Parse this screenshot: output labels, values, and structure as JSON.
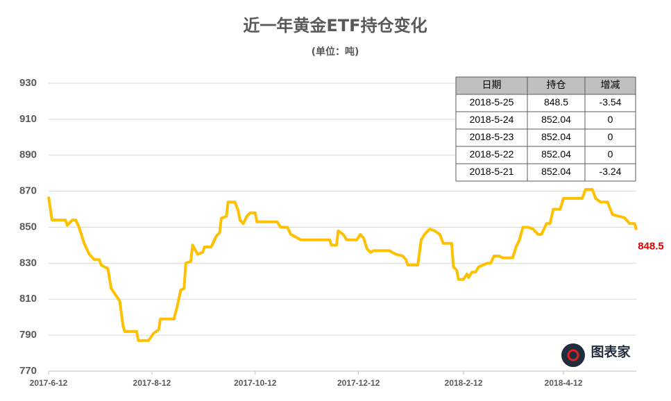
{
  "chart_data": {
    "type": "line",
    "title": "近一年黄金ETF持仓变化",
    "subtitle": "(单位：吨)",
    "x": [
      "2017-6-12",
      "2017-6-14",
      "2017-6-22",
      "2017-6-23",
      "2017-6-26",
      "2017-6-28",
      "2017-6-30",
      "2017-7-3",
      "2017-7-6",
      "2017-7-9",
      "2017-7-12",
      "2017-7-13",
      "2017-7-17",
      "2017-7-19",
      "2017-7-24",
      "2017-7-26",
      "2017-7-27",
      "2017-8-3",
      "2017-8-4",
      "2017-8-10",
      "2017-8-13",
      "2017-8-16",
      "2017-8-17",
      "2017-8-25",
      "2017-8-27",
      "2017-8-29",
      "2017-8-31",
      "2017-9-1",
      "2017-9-4",
      "2017-9-5",
      "2017-9-8",
      "2017-9-11",
      "2017-9-12",
      "2017-9-16",
      "2017-9-19",
      "2017-9-21",
      "2017-9-22",
      "2017-9-25",
      "2017-9-26",
      "2017-9-30",
      "2017-10-2",
      "2017-10-3",
      "2017-10-5",
      "2017-10-7",
      "2017-10-9",
      "2017-10-12",
      "2017-10-13",
      "2017-10-25",
      "2017-10-27",
      "2017-10-31",
      "2017-11-2",
      "2017-11-8",
      "2017-11-25",
      "2017-11-26",
      "2017-11-29",
      "2017-11-30",
      "2017-12-3",
      "2017-12-5",
      "2017-12-11",
      "2017-12-13",
      "2017-12-15",
      "2017-12-17",
      "2017-12-19",
      "2017-12-21",
      "2017-12-30",
      "2018-1-3",
      "2018-1-7",
      "2018-1-9",
      "2018-1-10",
      "2018-1-16",
      "2018-1-18",
      "2018-1-20",
      "2018-1-23",
      "2018-1-26",
      "2018-1-29",
      "2018-1-31",
      "2018-2-5",
      "2018-2-6",
      "2018-2-8",
      "2018-2-9",
      "2018-2-12",
      "2018-2-14",
      "2018-2-15",
      "2018-2-17",
      "2018-2-19",
      "2018-2-21",
      "2018-2-26",
      "2018-2-28",
      "2018-3-2",
      "2018-3-5",
      "2018-3-7",
      "2018-3-13",
      "2018-3-15",
      "2018-3-17",
      "2018-3-19",
      "2018-3-22",
      "2018-3-25",
      "2018-3-28",
      "2018-3-30",
      "2018-4-2",
      "2018-4-4",
      "2018-4-6",
      "2018-4-10",
      "2018-4-12",
      "2018-4-23",
      "2018-4-25",
      "2018-4-29",
      "2018-5-1",
      "2018-5-4",
      "2018-5-8",
      "2018-5-11",
      "2018-5-18",
      "2018-5-21",
      "2018-5-22",
      "2018-5-23",
      "2018-5-24",
      "2018-5-25"
    ],
    "values": [
      867,
      854,
      854,
      851,
      854,
      854,
      850,
      841,
      835,
      832,
      832,
      829,
      827,
      816,
      809,
      795,
      792,
      792,
      787,
      787,
      791,
      793,
      799,
      799,
      806,
      815,
      816,
      830,
      831,
      840,
      835,
      836,
      839,
      839,
      845,
      847,
      855,
      856,
      864,
      864,
      859,
      854,
      852,
      856,
      858,
      858,
      853,
      853,
      850,
      850,
      846,
      843,
      843,
      840,
      840,
      848,
      846,
      843,
      843,
      846,
      844,
      838,
      836,
      837,
      837,
      835,
      834,
      832,
      829,
      829,
      843,
      846,
      849,
      848,
      846,
      841,
      841,
      828,
      826,
      821,
      821,
      824,
      822,
      825,
      825,
      828,
      830,
      830,
      834,
      834,
      833,
      833,
      839,
      843,
      850,
      850,
      849,
      846,
      846,
      852,
      852,
      860,
      860,
      866,
      866,
      871,
      871,
      866,
      864,
      864,
      857,
      855.28,
      852.04,
      852.04,
      852.04,
      852.04,
      848.5
    ],
    "color": "#ffc000",
    "xlim": [
      "2017-6-12",
      "2018-5-25"
    ],
    "xticks": [
      "2017-6-12",
      "2017-8-12",
      "2017-10-12",
      "2017-12-12",
      "2018-2-12",
      "2018-4-12"
    ],
    "ylim": [
      770,
      930
    ],
    "yticks": [
      770,
      790,
      810,
      830,
      850,
      870,
      890,
      910,
      930
    ],
    "grid": true,
    "table": {
      "columns": [
        "日期",
        "持仓",
        "增减"
      ],
      "rows": [
        [
          "2018-5-25",
          848.5,
          -3.54
        ],
        [
          "2018-5-24",
          852.04,
          0
        ],
        [
          "2018-5-23",
          852.04,
          0
        ],
        [
          "2018-5-22",
          852.04,
          0
        ],
        [
          "2018-5-21",
          852.04,
          -3.24
        ]
      ]
    },
    "logo": "图表家"
  }
}
